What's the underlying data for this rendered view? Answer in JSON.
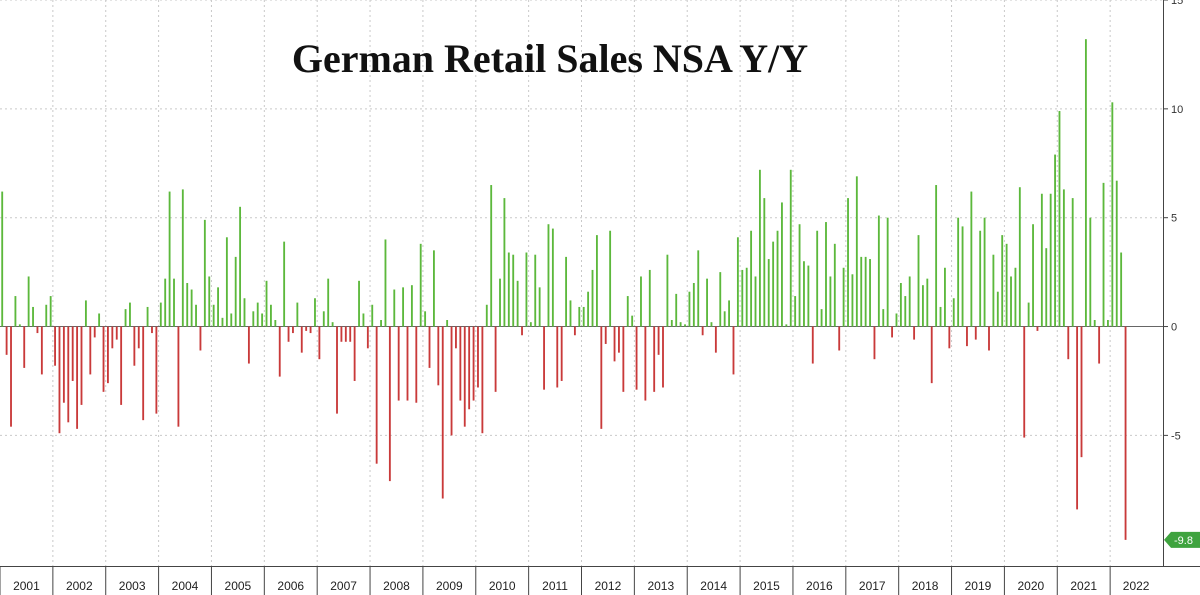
{
  "chart_data": {
    "type": "bar",
    "title": "German Retail Sales NSA Y/Y",
    "ylim": [
      -11,
      15
    ],
    "yticks": [
      -5,
      0,
      5,
      10,
      15
    ],
    "grid": true,
    "colors": {
      "positive": "#5cb83c",
      "negative": "#c93a3a",
      "last_label_bg": "#3fa33f"
    },
    "last_value_label": "-9.8",
    "years": [
      "2001",
      "2002",
      "2003",
      "2004",
      "2005",
      "2006",
      "2007",
      "2008",
      "2009",
      "2010",
      "2011",
      "2012",
      "2013",
      "2014",
      "2015",
      "2016",
      "2017",
      "2018",
      "2019",
      "2020",
      "2021",
      "2022"
    ],
    "months_per_year": [
      12,
      12,
      12,
      12,
      12,
      12,
      12,
      12,
      12,
      12,
      12,
      12,
      12,
      12,
      12,
      12,
      12,
      12,
      12,
      12,
      12,
      4
    ],
    "values": [
      6.2,
      -1.3,
      -4.6,
      1.4,
      0.1,
      -1.9,
      2.3,
      0.9,
      -0.3,
      -2.2,
      1.0,
      1.4,
      -1.8,
      -4.9,
      -3.5,
      -4.4,
      -2.5,
      -4.7,
      -3.6,
      1.2,
      -2.2,
      -0.5,
      0.6,
      -3.0,
      -2.6,
      -1.0,
      -0.6,
      -3.6,
      0.8,
      1.1,
      -1.8,
      -1.0,
      -4.3,
      0.9,
      -0.3,
      -4.0,
      1.1,
      2.2,
      6.2,
      2.2,
      -4.6,
      6.3,
      2.0,
      1.7,
      1.0,
      -1.1,
      4.9,
      2.3,
      1.0,
      1.8,
      0.4,
      4.1,
      0.6,
      3.2,
      5.5,
      1.3,
      -1.7,
      0.7,
      1.1,
      0.6,
      2.1,
      1.0,
      0.3,
      -2.3,
      3.9,
      -0.7,
      -0.3,
      1.1,
      -1.2,
      -0.2,
      -0.3,
      1.3,
      -1.5,
      0.7,
      2.2,
      0.2,
      -4.0,
      -0.7,
      -0.7,
      -0.7,
      -2.5,
      2.1,
      0.6,
      -1.0,
      1.0,
      -6.3,
      0.3,
      4.0,
      -7.1,
      1.7,
      -3.4,
      1.8,
      -3.4,
      1.9,
      -3.5,
      3.8,
      0.7,
      -1.9,
      3.5,
      -2.7,
      -7.9,
      0.3,
      -5.0,
      -1.0,
      -3.4,
      -4.6,
      -3.8,
      -3.4,
      -2.8,
      -4.9,
      1.0,
      6.5,
      -3.0,
      2.2,
      5.9,
      3.4,
      3.3,
      2.1,
      -0.4,
      3.4,
      0.2,
      3.3,
      1.8,
      -2.9,
      4.7,
      4.5,
      -2.8,
      -2.5,
      3.2,
      1.2,
      -0.4,
      0.9,
      0.9,
      1.6,
      2.6,
      4.2,
      -4.7,
      -0.8,
      4.4,
      -1.6,
      -1.2,
      -3.0,
      1.4,
      0.5,
      -2.9,
      2.3,
      -3.4,
      2.6,
      -3.0,
      -1.3,
      -2.8,
      3.3,
      0.3,
      1.5,
      0.2,
      0.1,
      1.6,
      2.0,
      3.5,
      -0.4,
      2.2,
      0.2,
      -1.2,
      2.5,
      0.7,
      1.2,
      -2.2,
      4.1,
      2.6,
      2.7,
      4.4,
      2.3,
      7.2,
      5.9,
      3.1,
      3.9,
      4.4,
      5.7,
      0.1,
      7.2,
      1.4,
      4.7,
      3.0,
      2.8,
      -1.7,
      4.4,
      0.8,
      4.8,
      2.3,
      3.8,
      -1.1,
      2.7,
      5.9,
      2.4,
      6.9,
      3.2,
      3.2,
      3.1,
      -1.5,
      5.1,
      0.8,
      5.0,
      -0.5,
      0.6,
      2.0,
      1.4,
      2.3,
      -0.6,
      4.2,
      1.9,
      2.2,
      -2.6,
      6.5,
      0.9,
      2.7,
      -1.0,
      1.3,
      5.0,
      4.6,
      -0.9,
      6.2,
      -0.6,
      4.4,
      5.0,
      -1.1,
      3.3,
      1.6,
      4.2,
      3.8,
      2.3,
      2.7,
      6.4,
      -5.1,
      1.1,
      4.7,
      -0.2,
      6.1,
      3.6,
      6.1,
      7.9,
      9.9,
      6.3,
      -1.5,
      5.9,
      -8.4,
      -6.0,
      13.2,
      5.0,
      0.3,
      -1.7,
      6.6,
      0.3,
      10.3,
      6.7,
      3.4,
      -9.8
    ]
  }
}
